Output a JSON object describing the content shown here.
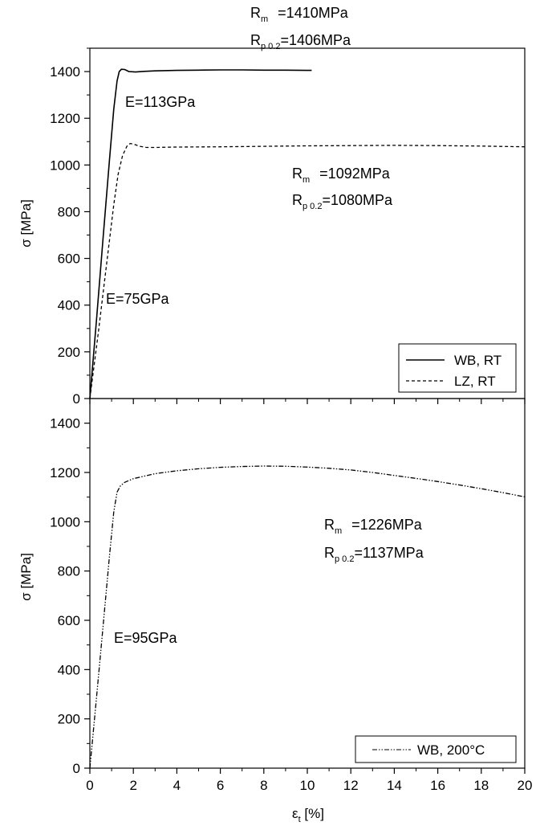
{
  "chart_data": [
    {
      "type": "line",
      "ylabel": "σ [MPa]",
      "xlim": [
        0,
        20
      ],
      "ylim": [
        0,
        1500
      ],
      "y_ticks": [
        0,
        200,
        400,
        600,
        800,
        1000,
        1200,
        1400
      ],
      "x_ticks": [
        0,
        2,
        4,
        6,
        8,
        10,
        12,
        14,
        16,
        18,
        20
      ],
      "show_x_tick_labels": false,
      "grid": false,
      "legend_position": "bottom-right",
      "series": [
        {
          "name": "WB, RT",
          "dash": "solid",
          "x": [
            0,
            0.3,
            0.6,
            0.9,
            1.1,
            1.25,
            1.35,
            1.45,
            1.6,
            1.8,
            2.1,
            2.5,
            3,
            4,
            5,
            6,
            7,
            8,
            9,
            10,
            10.2
          ],
          "y": [
            0,
            330,
            680,
            1020,
            1240,
            1360,
            1400,
            1410,
            1409,
            1400,
            1398,
            1401,
            1403,
            1405,
            1406,
            1407,
            1407,
            1406,
            1406,
            1405,
            1405
          ]
        },
        {
          "name": "LZ, RT",
          "dash": "dashed",
          "x": [
            0,
            0.4,
            0.8,
            1.1,
            1.3,
            1.5,
            1.7,
            1.85,
            2,
            2.3,
            2.6,
            3,
            4,
            6,
            8,
            10,
            12,
            14,
            16,
            18,
            20
          ],
          "y": [
            0,
            290,
            600,
            830,
            960,
            1040,
            1080,
            1092,
            1090,
            1080,
            1075,
            1075,
            1077,
            1078,
            1080,
            1082,
            1083,
            1084,
            1083,
            1081,
            1078
          ]
        }
      ],
      "annotations": [
        {
          "lines": [
            {
              "main": "R",
              "sub": "m",
              "value": "=1410MPa"
            },
            {
              "main": "R",
              "sub": "p 0.2",
              "value": "=1406MPa"
            }
          ]
        },
        {
          "text": "E=113GPa"
        },
        {
          "lines": [
            {
              "main": "R",
              "sub": "m",
              "value": "=1092MPa"
            },
            {
              "main": "R",
              "sub": "p 0.2",
              "value": "=1080MPa"
            }
          ]
        },
        {
          "text": "E=75GPa"
        }
      ]
    },
    {
      "type": "line",
      "xlabel": "ε",
      "xlabel_sub": "t",
      "xlabel_unit": " [%]",
      "ylabel": "σ [MPa]",
      "xlim": [
        0,
        20
      ],
      "ylim": [
        0,
        1500
      ],
      "y_ticks": [
        0,
        200,
        400,
        600,
        800,
        1000,
        1200,
        1400
      ],
      "x_ticks": [
        0,
        2,
        4,
        6,
        8,
        10,
        12,
        14,
        16,
        18,
        20
      ],
      "grid": false,
      "legend_position": "bottom-right",
      "series": [
        {
          "name": "WB, 200°C",
          "dash": "dash-dot-dot",
          "x": [
            0,
            0.3,
            0.6,
            0.9,
            1.1,
            1.25,
            1.4,
            1.6,
            2,
            3,
            4,
            5,
            6,
            7,
            8,
            9,
            10,
            11,
            12,
            13,
            14,
            15,
            16,
            17,
            18,
            19,
            20
          ],
          "y": [
            0,
            280,
            570,
            860,
            1040,
            1120,
            1145,
            1160,
            1175,
            1195,
            1207,
            1215,
            1221,
            1224,
            1226,
            1225,
            1222,
            1217,
            1210,
            1200,
            1188,
            1176,
            1163,
            1149,
            1134,
            1118,
            1101
          ]
        }
      ],
      "annotations": [
        {
          "lines": [
            {
              "main": "R",
              "sub": "m",
              "value": "=1226MPa"
            },
            {
              "main": "R",
              "sub": "p 0.2",
              "value": "=1137MPa"
            }
          ]
        },
        {
          "text": "E=95GPa"
        }
      ]
    }
  ]
}
